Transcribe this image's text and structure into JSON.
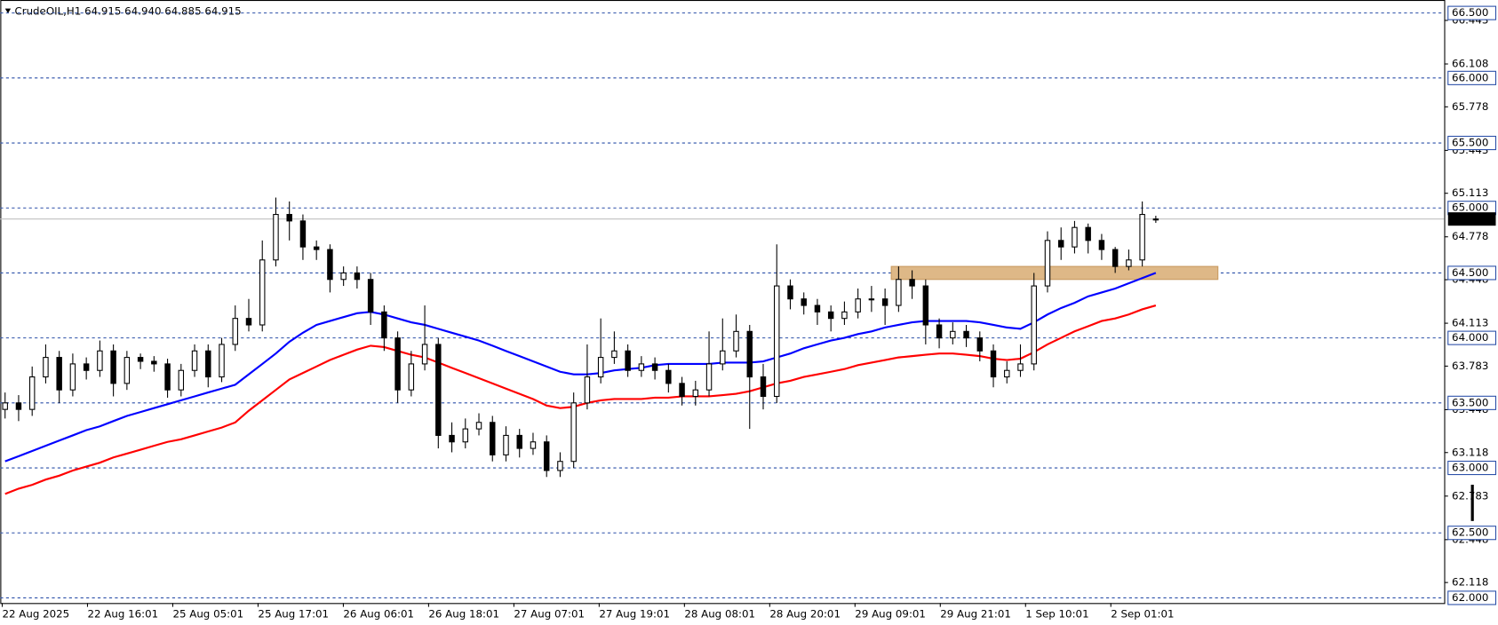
{
  "chart_data": {
    "type": "candlestick",
    "title": "CrudeOIL,H1  64.915 64.940 64.885 64.915",
    "x_labels": [
      "22 Aug 2025",
      "22 Aug 16:01",
      "25 Aug 05:01",
      "25 Aug 17:01",
      "26 Aug 06:01",
      "26 Aug 18:01",
      "27 Aug 07:01",
      "27 Aug 19:01",
      "28 Aug 08:01",
      "28 Aug 20:01",
      "29 Aug 09:01",
      "29 Aug 21:01",
      "1 Sep 10:01",
      "2 Sep 01:01"
    ],
    "open": [
      63.45,
      63.5,
      63.45,
      63.7,
      63.85,
      63.6,
      63.8,
      63.75,
      63.9,
      63.65,
      63.85,
      63.82,
      63.8,
      63.6,
      63.75,
      63.9,
      63.7,
      63.95,
      64.15,
      64.1,
      64.6,
      64.95,
      64.9,
      64.7,
      64.68,
      64.45,
      64.5,
      64.45,
      64.2,
      64.0,
      63.6,
      63.8,
      63.95,
      63.25,
      63.2,
      63.3,
      63.35,
      63.1,
      63.25,
      63.15,
      63.2,
      62.98,
      63.05,
      63.5,
      63.7,
      63.85,
      63.9,
      63.75,
      63.8,
      63.75,
      63.65,
      63.55,
      63.6,
      63.8,
      63.9,
      64.05,
      63.7,
      63.55,
      64.4,
      64.3,
      64.25,
      64.2,
      64.15,
      64.2,
      64.3,
      64.3,
      64.25,
      64.45,
      64.4,
      64.1,
      64.0,
      64.05,
      64.0,
      63.9,
      63.7,
      63.75,
      63.8,
      64.4,
      64.75,
      64.7,
      64.85,
      64.75,
      64.68,
      64.55,
      64.6,
      64.915
    ],
    "high": [
      63.58,
      63.56,
      63.78,
      63.95,
      63.9,
      63.88,
      63.85,
      63.98,
      63.95,
      63.9,
      63.88,
      63.86,
      63.84,
      63.8,
      63.95,
      63.95,
      64.0,
      64.25,
      64.3,
      64.75,
      65.08,
      65.05,
      64.95,
      64.75,
      64.72,
      64.55,
      64.55,
      64.5,
      64.25,
      64.05,
      63.9,
      64.25,
      64.0,
      63.35,
      63.38,
      63.42,
      63.4,
      63.32,
      63.3,
      63.27,
      63.25,
      63.12,
      63.58,
      63.95,
      64.15,
      64.05,
      63.95,
      63.86,
      63.85,
      63.8,
      63.7,
      63.67,
      64.05,
      64.15,
      64.18,
      64.1,
      63.8,
      64.72,
      64.45,
      64.35,
      64.3,
      64.25,
      64.28,
      64.38,
      64.4,
      64.38,
      64.55,
      64.52,
      64.45,
      64.15,
      64.12,
      64.1,
      64.05,
      63.95,
      63.82,
      63.95,
      64.5,
      64.82,
      64.85,
      64.9,
      64.88,
      64.8,
      64.7,
      64.68,
      65.05,
      64.94
    ],
    "low": [
      63.38,
      63.36,
      63.4,
      63.65,
      63.5,
      63.55,
      63.68,
      63.7,
      63.55,
      63.6,
      63.76,
      63.74,
      63.54,
      63.55,
      63.7,
      63.62,
      63.66,
      63.9,
      64.05,
      64.05,
      64.55,
      64.75,
      64.6,
      64.6,
      64.35,
      64.4,
      64.38,
      64.1,
      63.9,
      63.5,
      63.55,
      63.75,
      63.15,
      63.12,
      63.15,
      63.25,
      63.05,
      63.05,
      63.08,
      63.1,
      62.93,
      62.93,
      63.0,
      63.45,
      63.65,
      63.8,
      63.7,
      63.7,
      63.68,
      63.58,
      63.48,
      63.48,
      63.55,
      63.75,
      63.85,
      63.3,
      63.45,
      63.5,
      64.22,
      64.18,
      64.1,
      64.05,
      64.1,
      64.15,
      64.2,
      64.1,
      64.2,
      64.3,
      63.95,
      63.92,
      63.95,
      63.93,
      63.82,
      63.62,
      63.65,
      63.7,
      63.75,
      64.35,
      64.6,
      64.65,
      64.65,
      64.6,
      64.5,
      64.52,
      64.55,
      64.885
    ],
    "close": [
      63.5,
      63.45,
      63.7,
      63.85,
      63.6,
      63.8,
      63.75,
      63.9,
      63.65,
      63.85,
      63.82,
      63.8,
      63.6,
      63.75,
      63.9,
      63.7,
      63.95,
      64.15,
      64.1,
      64.6,
      64.95,
      64.9,
      64.7,
      64.68,
      64.45,
      64.5,
      64.45,
      64.2,
      64.0,
      63.6,
      63.8,
      63.95,
      63.25,
      63.2,
      63.3,
      63.35,
      63.1,
      63.25,
      63.15,
      63.2,
      62.98,
      63.05,
      63.5,
      63.7,
      63.85,
      63.9,
      63.75,
      63.8,
      63.75,
      63.65,
      63.55,
      63.6,
      63.8,
      63.9,
      64.05,
      63.7,
      63.55,
      64.4,
      64.3,
      64.25,
      64.2,
      64.15,
      64.2,
      64.3,
      64.3,
      64.25,
      64.45,
      64.4,
      64.1,
      64.0,
      64.05,
      64.0,
      63.9,
      63.7,
      63.75,
      63.8,
      64.4,
      64.75,
      64.7,
      64.85,
      64.75,
      64.68,
      64.55,
      64.6,
      64.95,
      64.915
    ],
    "series": [
      {
        "color": "#0000ff",
        "values": [
          63.05,
          63.09,
          63.13,
          63.17,
          63.21,
          63.25,
          63.29,
          63.32,
          63.36,
          63.4,
          63.43,
          63.46,
          63.49,
          63.52,
          63.55,
          63.58,
          63.61,
          63.64,
          63.72,
          63.8,
          63.88,
          63.97,
          64.04,
          64.1,
          64.13,
          64.16,
          64.19,
          64.2,
          64.18,
          64.15,
          64.12,
          64.1,
          64.07,
          64.04,
          64.01,
          63.98,
          63.94,
          63.9,
          63.86,
          63.82,
          63.78,
          63.74,
          63.72,
          63.72,
          63.73,
          63.75,
          63.76,
          63.77,
          63.79,
          63.8,
          63.8,
          63.8,
          63.8,
          63.81,
          63.81,
          63.81,
          63.82,
          63.85,
          63.88,
          63.92,
          63.95,
          63.98,
          64.0,
          64.03,
          64.05,
          64.08,
          64.1,
          64.12,
          64.13,
          64.13,
          64.13,
          64.13,
          64.12,
          64.1,
          64.08,
          64.07,
          64.12,
          64.18,
          64.23,
          64.27,
          64.32,
          64.35,
          64.38,
          64.42,
          64.46,
          64.5
        ]
      },
      {
        "color": "#ff0000",
        "values": [
          62.8,
          62.84,
          62.87,
          62.91,
          62.94,
          62.98,
          63.01,
          63.04,
          63.08,
          63.11,
          63.14,
          63.17,
          63.2,
          63.22,
          63.25,
          63.28,
          63.31,
          63.35,
          63.44,
          63.52,
          63.6,
          63.68,
          63.73,
          63.78,
          63.83,
          63.87,
          63.91,
          63.94,
          63.93,
          63.9,
          63.87,
          63.85,
          63.81,
          63.77,
          63.73,
          63.69,
          63.65,
          63.61,
          63.57,
          63.53,
          63.48,
          63.46,
          63.47,
          63.5,
          63.52,
          63.53,
          63.53,
          63.53,
          63.54,
          63.54,
          63.55,
          63.55,
          63.55,
          63.56,
          63.57,
          63.59,
          63.62,
          63.65,
          63.67,
          63.7,
          63.72,
          63.74,
          63.76,
          63.79,
          63.81,
          63.83,
          63.85,
          63.86,
          63.87,
          63.88,
          63.88,
          63.87,
          63.86,
          63.84,
          63.83,
          63.84,
          63.89,
          63.95,
          64.0,
          64.05,
          64.09,
          64.13,
          64.15,
          64.18,
          64.22,
          64.25
        ]
      }
    ],
    "ylim": [
      61.96,
      66.6
    ],
    "yticks": [
      66.443,
      66.108,
      65.778,
      65.443,
      65.113,
      64.778,
      64.448,
      64.113,
      63.783,
      63.448,
      63.118,
      62.783,
      62.448,
      62.118
    ],
    "levels": [
      {
        "value": 66.5,
        "label": "66.500"
      },
      {
        "value": 66,
        "label": "66.000"
      },
      {
        "value": 65.5,
        "label": "65.500"
      },
      {
        "value": 65,
        "label": "65.000"
      },
      {
        "value": 64.5,
        "label": "64.500"
      },
      {
        "value": 64,
        "label": "64.000"
      },
      {
        "value": 63.5,
        "label": "63.500"
      },
      {
        "value": 63,
        "label": "63.000"
      },
      {
        "value": 62.5,
        "label": "62.500"
      },
      {
        "value": 62,
        "label": "62.000"
      }
    ],
    "last_price": 64.915,
    "zone": [
      64.45,
      64.55
    ],
    "up_color": "#ffffff",
    "down_color": "#000000"
  }
}
